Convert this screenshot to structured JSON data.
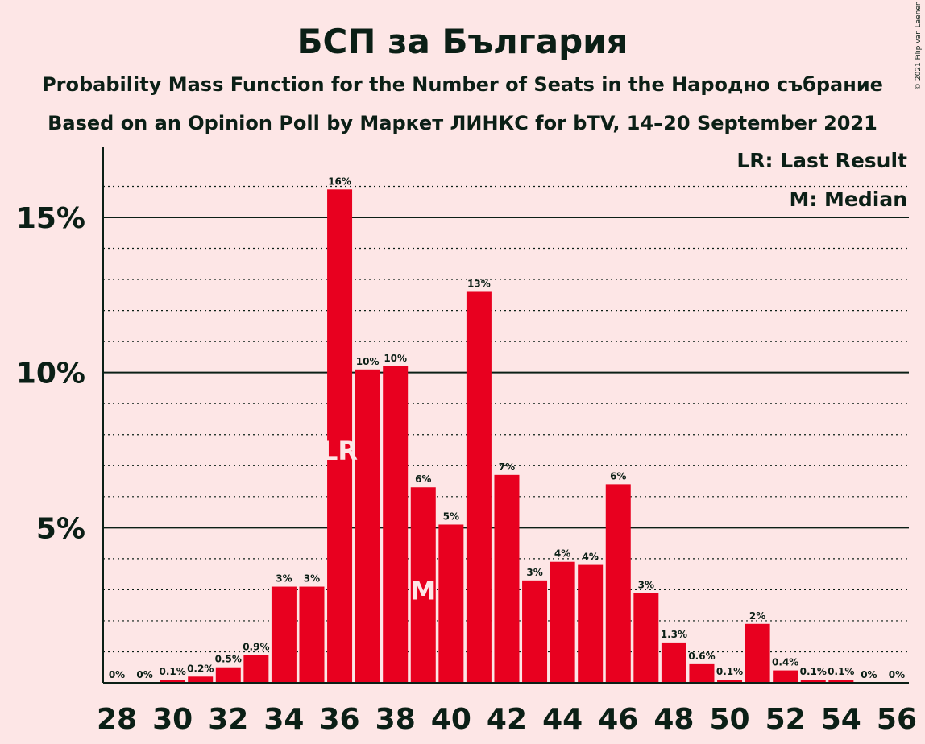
{
  "title": "БСП за България",
  "subtitle1": "Probability Mass Function for the Number of Seats in the Народно събрание",
  "subtitle2": "Based on an Opinion Poll by Маркет ЛИНКС for bTV, 14–20 September 2021",
  "copyright": "© 2021 Filip van Laenen",
  "legend": {
    "last_result": "LR: Last Result",
    "median": "M: Median"
  },
  "colors": {
    "background": "#FDE6E6",
    "bar": "#E8001F",
    "text": "#0B1F16",
    "marker_text": "#FDE6E6"
  },
  "chart_data": {
    "type": "bar",
    "categories": [
      28,
      29,
      30,
      31,
      32,
      33,
      34,
      35,
      36,
      37,
      38,
      39,
      40,
      41,
      42,
      43,
      44,
      45,
      46,
      47,
      48,
      49,
      50,
      51,
      52,
      53,
      54,
      55,
      56
    ],
    "values": [
      0,
      0,
      0.1,
      0.2,
      0.5,
      0.9,
      3.1,
      3.1,
      15.9,
      10.1,
      10.2,
      6.3,
      5.1,
      12.6,
      6.7,
      3.3,
      3.9,
      3.8,
      6.4,
      2.9,
      1.3,
      0.6,
      0.1,
      1.9,
      0.4,
      0.1,
      0.1,
      0,
      0
    ],
    "data_labels": [
      "0%",
      "0%",
      "0.1%",
      "0.2%",
      "0.5%",
      "0.9%",
      "3%",
      "3%",
      "16%",
      "10%",
      "10%",
      "6%",
      "5%",
      "13%",
      "7%",
      "3%",
      "4%",
      "4%",
      "6%",
      "3%",
      "1.3%",
      "0.6%",
      "0.1%",
      "2%",
      "0.4%",
      "0.1%",
      "0.1%",
      "0%",
      "0%"
    ],
    "x_tick_labels": [
      "28",
      "30",
      "32",
      "34",
      "36",
      "38",
      "40",
      "42",
      "44",
      "46",
      "48",
      "50",
      "52",
      "54",
      "56"
    ],
    "y_ticks": [
      {
        "value": 5,
        "label": "5%"
      },
      {
        "value": 10,
        "label": "10%"
      },
      {
        "value": 15,
        "label": "15%"
      }
    ],
    "ylim": [
      0,
      17
    ],
    "minor_grid_step": 1,
    "last_result": {
      "seats": 36,
      "label": "LR"
    },
    "median": {
      "seats": 39,
      "label": "M"
    },
    "legend_position": "top-right"
  }
}
